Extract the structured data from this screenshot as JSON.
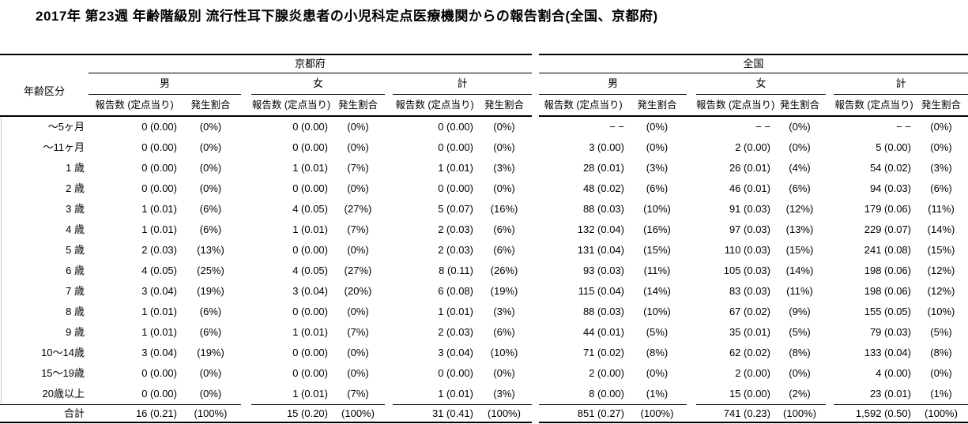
{
  "chart_data": {
    "type": "table",
    "title": "2017年 第23週 年齢階級別 流行性耳下腺炎患者の小児科定点医療機関からの報告割合(全国、京都府)",
    "age_column_header": "年齢区分",
    "region_headers": [
      "京都府",
      "全国"
    ],
    "sex_headers": [
      "男",
      "女",
      "計"
    ],
    "subcol_headers": {
      "count": "報告数 (定点当り)",
      "rate": "発生割合"
    },
    "column_order": [
      "京都府 男",
      "京都府 女",
      "京都府 計",
      "全国 男",
      "全国 女",
      "全国 計"
    ],
    "rows": [
      {
        "age": "～5ヶ月",
        "cells": [
          [
            "0 (0.00)",
            "(0%)"
          ],
          [
            "0 (0.00)",
            "(0%)"
          ],
          [
            "0 (0.00)",
            "(0%)"
          ],
          [
            "− −",
            "(0%)"
          ],
          [
            "− −",
            "(0%)"
          ],
          [
            "− −",
            "(0%)"
          ]
        ]
      },
      {
        "age": "～11ヶ月",
        "cells": [
          [
            "0 (0.00)",
            "(0%)"
          ],
          [
            "0 (0.00)",
            "(0%)"
          ],
          [
            "0 (0.00)",
            "(0%)"
          ],
          [
            "3 (0.00)",
            "(0%)"
          ],
          [
            "2 (0.00)",
            "(0%)"
          ],
          [
            "5 (0.00)",
            "(0%)"
          ]
        ]
      },
      {
        "age": "1 歳",
        "cells": [
          [
            "0 (0.00)",
            "(0%)"
          ],
          [
            "1 (0.01)",
            "(7%)"
          ],
          [
            "1 (0.01)",
            "(3%)"
          ],
          [
            "28 (0.01)",
            "(3%)"
          ],
          [
            "26 (0.01)",
            "(4%)"
          ],
          [
            "54 (0.02)",
            "(3%)"
          ]
        ]
      },
      {
        "age": "2 歳",
        "cells": [
          [
            "0 (0.00)",
            "(0%)"
          ],
          [
            "0 (0.00)",
            "(0%)"
          ],
          [
            "0 (0.00)",
            "(0%)"
          ],
          [
            "48 (0.02)",
            "(6%)"
          ],
          [
            "46 (0.01)",
            "(6%)"
          ],
          [
            "94 (0.03)",
            "(6%)"
          ]
        ]
      },
      {
        "age": "3 歳",
        "cells": [
          [
            "1 (0.01)",
            "(6%)"
          ],
          [
            "4 (0.05)",
            "(27%)"
          ],
          [
            "5 (0.07)",
            "(16%)"
          ],
          [
            "88 (0.03)",
            "(10%)"
          ],
          [
            "91 (0.03)",
            "(12%)"
          ],
          [
            "179 (0.06)",
            "(11%)"
          ]
        ]
      },
      {
        "age": "4 歳",
        "cells": [
          [
            "1 (0.01)",
            "(6%)"
          ],
          [
            "1 (0.01)",
            "(7%)"
          ],
          [
            "2 (0.03)",
            "(6%)"
          ],
          [
            "132 (0.04)",
            "(16%)"
          ],
          [
            "97 (0.03)",
            "(13%)"
          ],
          [
            "229 (0.07)",
            "(14%)"
          ]
        ]
      },
      {
        "age": "5 歳",
        "cells": [
          [
            "2 (0.03)",
            "(13%)"
          ],
          [
            "0 (0.00)",
            "(0%)"
          ],
          [
            "2 (0.03)",
            "(6%)"
          ],
          [
            "131 (0.04)",
            "(15%)"
          ],
          [
            "110 (0.03)",
            "(15%)"
          ],
          [
            "241 (0.08)",
            "(15%)"
          ]
        ]
      },
      {
        "age": "6 歳",
        "cells": [
          [
            "4 (0.05)",
            "(25%)"
          ],
          [
            "4 (0.05)",
            "(27%)"
          ],
          [
            "8 (0.11)",
            "(26%)"
          ],
          [
            "93 (0.03)",
            "(11%)"
          ],
          [
            "105 (0.03)",
            "(14%)"
          ],
          [
            "198 (0.06)",
            "(12%)"
          ]
        ]
      },
      {
        "age": "7 歳",
        "cells": [
          [
            "3 (0.04)",
            "(19%)"
          ],
          [
            "3 (0.04)",
            "(20%)"
          ],
          [
            "6 (0.08)",
            "(19%)"
          ],
          [
            "115 (0.04)",
            "(14%)"
          ],
          [
            "83 (0.03)",
            "(11%)"
          ],
          [
            "198 (0.06)",
            "(12%)"
          ]
        ]
      },
      {
        "age": "8 歳",
        "cells": [
          [
            "1 (0.01)",
            "(6%)"
          ],
          [
            "0 (0.00)",
            "(0%)"
          ],
          [
            "1 (0.01)",
            "(3%)"
          ],
          [
            "88 (0.03)",
            "(10%)"
          ],
          [
            "67 (0.02)",
            "(9%)"
          ],
          [
            "155 (0.05)",
            "(10%)"
          ]
        ]
      },
      {
        "age": "9 歳",
        "cells": [
          [
            "1 (0.01)",
            "(6%)"
          ],
          [
            "1 (0.01)",
            "(7%)"
          ],
          [
            "2 (0.03)",
            "(6%)"
          ],
          [
            "44 (0.01)",
            "(5%)"
          ],
          [
            "35 (0.01)",
            "(5%)"
          ],
          [
            "79 (0.03)",
            "(5%)"
          ]
        ]
      },
      {
        "age": "10～14歳",
        "cells": [
          [
            "3 (0.04)",
            "(19%)"
          ],
          [
            "0 (0.00)",
            "(0%)"
          ],
          [
            "3 (0.04)",
            "(10%)"
          ],
          [
            "71 (0.02)",
            "(8%)"
          ],
          [
            "62 (0.02)",
            "(8%)"
          ],
          [
            "133 (0.04)",
            "(8%)"
          ]
        ]
      },
      {
        "age": "15～19歳",
        "cells": [
          [
            "0 (0.00)",
            "(0%)"
          ],
          [
            "0 (0.00)",
            "(0%)"
          ],
          [
            "0 (0.00)",
            "(0%)"
          ],
          [
            "2 (0.00)",
            "(0%)"
          ],
          [
            "2 (0.00)",
            "(0%)"
          ],
          [
            "4 (0.00)",
            "(0%)"
          ]
        ]
      },
      {
        "age": "20歳以上",
        "cells": [
          [
            "0 (0.00)",
            "(0%)"
          ],
          [
            "1 (0.01)",
            "(7%)"
          ],
          [
            "1 (0.01)",
            "(3%)"
          ],
          [
            "8 (0.00)",
            "(1%)"
          ],
          [
            "15 (0.00)",
            "(2%)"
          ],
          [
            "23 (0.01)",
            "(1%)"
          ]
        ]
      }
    ],
    "total": {
      "age": "合計",
      "cells": [
        [
          "16 (0.21)",
          "(100%)"
        ],
        [
          "15 (0.20)",
          "(100%)"
        ],
        [
          "31 (0.41)",
          "(100%)"
        ],
        [
          "851 (0.27)",
          "(100%)"
        ],
        [
          "741 (0.23)",
          "(100%)"
        ],
        [
          "1,592 (0.50)",
          "(100%)"
        ]
      ]
    }
  },
  "colors": {
    "text": "#000000",
    "background": "#ffffff",
    "rule": "#000000"
  }
}
